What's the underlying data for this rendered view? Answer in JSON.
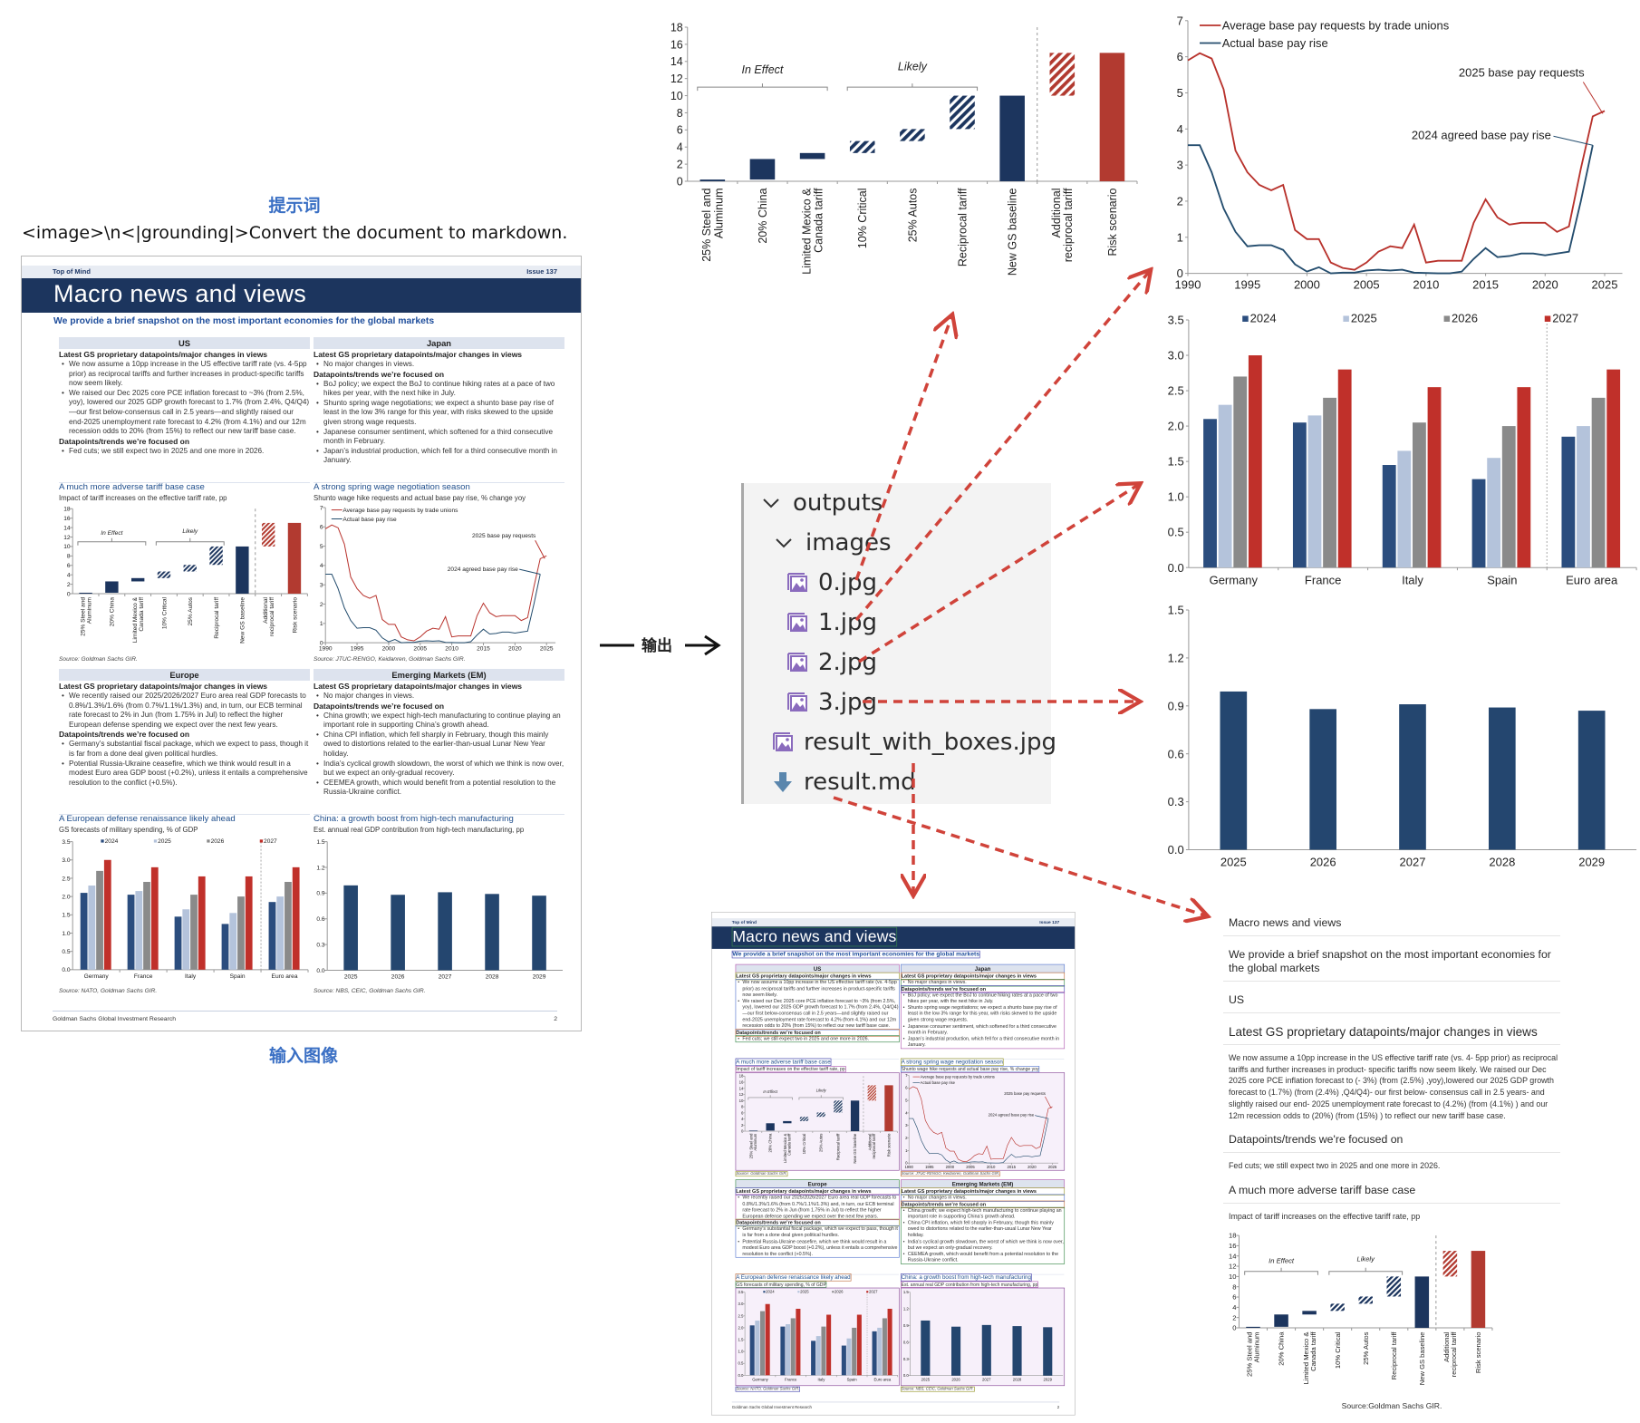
{
  "prompt": {
    "label": "提示词",
    "text": "<image>\\n<|grounding|>Convert the document to markdown."
  },
  "input_label": "输入图像",
  "output_label": "输出",
  "doc": {
    "top_left": "Top of Mind",
    "top_right": "Issue 137",
    "title": "Macro news and views",
    "subtitle": "We provide a brief snapshot on the most important economies for the global markets",
    "sections": [
      {
        "header": "US",
        "chart": 0,
        "blocks": [
          {
            "heading": "Latest GS proprietary datapoints/major changes in views",
            "bullets": [
              "We now assume a 10pp increase in the US effective tariff rate (vs. 4-5pp prior) as reciprocal tariffs and further increases in product-specific tariffs now seem likely.",
              "We raised our Dec 2025 core PCE inflation forecast to ~3% (from 2.5%, yoy), lowered our 2025 GDP growth forecast to 1.7% (from 2.4%, Q4/Q4)—our first below-consensus call in 2.5 years—and slightly raised our end-2025 unemployment rate forecast to 4.2% (from 4.1%) and our 12m recession odds to 20% (from 15%) to reflect our new tariff base case."
            ]
          },
          {
            "heading": "Datapoints/trends we’re focused on",
            "bullets": [
              "Fed cuts; we still expect two in 2025 and one more in 2026."
            ]
          }
        ],
        "chart_title": "A much more adverse tariff base case",
        "chart_subtitle": "Impact of tariff increases on the effective tariff rate, pp",
        "source": "Source: Goldman Sachs GIR."
      },
      {
        "header": "Japan",
        "chart": 1,
        "blocks": [
          {
            "heading": "Latest GS proprietary datapoints/major changes in views",
            "bullets": [
              "No major changes in views."
            ]
          },
          {
            "heading": "Datapoints/trends we’re focused on",
            "bullets": [
              "BoJ policy; we expect the BoJ to continue hiking rates at a pace of two hikes per year, with the next hike in July.",
              "Shunto spring wage negotiations; we expect a shunto base pay rise of least in the low 3% range for this year, with risks skewed to the upside given strong wage requests.",
              "Japanese consumer sentiment, which softened for a third consecutive month in February.",
              "Japan’s industrial production, which fell for a third consecutive month in January."
            ]
          }
        ],
        "chart_title": "A strong spring wage negotiation season",
        "chart_subtitle": "Shunto wage hike requests and actual base pay rise, % change yoy",
        "source": "Source: JTUC-RENGO, Keidanren, Goldman Sachs GIR."
      },
      {
        "header": "Europe",
        "chart": 2,
        "blocks": [
          {
            "heading": "Latest GS proprietary datapoints/major changes in views",
            "bullets": [
              "We recently raised our 2025/2026/2027 Euro area real GDP forecasts to 0.8%/1.3%/1.6% (from 0.7%/1.1%/1.3%) and, in turn, our ECB terminal rate forecast to 2% in Jun (from 1.75% in Jul) to reflect the higher European defense spending we expect over the next few years."
            ]
          },
          {
            "heading": "Datapoints/trends we’re focused on",
            "bullets": [
              "Germany’s substantial fiscal package, which we expect to pass, though it is far from a done deal given political hurdles.",
              "Potential Russia-Ukraine ceasefire, which we think would result in a modest Euro area GDP boost (+0.2%), unless it entails a comprehensive resolution to the conflict (+0.5%)."
            ]
          }
        ],
        "chart_title": "A European defense renaissance likely ahead",
        "chart_subtitle": "GS forecasts of military spending, % of GDP",
        "source": "Source: NATO, Goldman Sachs GIR."
      },
      {
        "header": "Emerging Markets (EM)",
        "chart": 3,
        "blocks": [
          {
            "heading": "Latest GS proprietary datapoints/major changes in views",
            "bullets": [
              "No major changes in views."
            ]
          },
          {
            "heading": "Datapoints/trends we’re focused on",
            "bullets": [
              "China growth; we expect high-tech manufacturing to continue playing an important role in supporting China’s growth ahead.",
              "China CPI inflation, which fell sharply in February, though this mainly owed to distortions related to the earlier-than-usual Lunar New Year holiday.",
              "India’s cyclical growth slowdown, the worst of which we think is now over, but we expect an only-gradual recovery.",
              "CEEMEA growth, which would benefit from a potential resolution to the Russia-Ukraine conflict."
            ]
          }
        ],
        "chart_title": "China: a growth boost from high-tech manufacturing",
        "chart_subtitle": "Est. annual real GDP contribution from high-tech manufacturing, pp",
        "source": "Source: NBS, CEIC, Goldman Sachs GIR."
      }
    ],
    "footer_left": "Goldman Sachs Global Investment Research",
    "footer_right": "2"
  },
  "file_tree": {
    "items": [
      {
        "label": "outputs",
        "type": "folder",
        "icon": "chevron-down-icon",
        "expanded": true
      },
      {
        "label": "images",
        "type": "folder",
        "icon": "chevron-down-icon",
        "expanded": true
      },
      {
        "label": "0.jpg",
        "type": "image",
        "icon": "image-file-icon"
      },
      {
        "label": "1.jpg",
        "type": "image",
        "icon": "image-file-icon"
      },
      {
        "label": "2.jpg",
        "type": "image",
        "icon": "image-file-icon"
      },
      {
        "label": "3.jpg",
        "type": "image",
        "icon": "image-file-icon"
      },
      {
        "label": "result_with_boxes.jpg",
        "type": "image",
        "icon": "image-file-icon"
      },
      {
        "label": "result.md",
        "type": "markdown",
        "icon": "download-arrow-icon"
      }
    ]
  },
  "markdown": {
    "h1": "Macro news and views",
    "h2": "We provide a brief snapshot on the most important economies for the global markets",
    "h3": "US",
    "h4": "Latest GS proprietary datapoints/major changes in views",
    "p1": "We now assume a 10pp increase in the US effective tariff rate (vs. 4- 5pp prior) as reciprocal tariffs and further increases in product- specific tariffs now seem likely. We raised our Dec 2025 core PCE inflation forecast to (- 3%) (from (2.5%) ,yoy),lowered our 2025 GDP growth forecast to (1.7%) (from (2.4%) ,Q4/Q4)- our first below- consensus call in 2.5 years- and slightly raised our end- 2025 unemployment rate forecast to (4.2%) (from (4.1%) ) and our 12m recession odds to (20%) (from (15%) ) to reflect our new tariff base case.",
    "h5": "Datapoints/trends we're focused on",
    "p2": "Fed cuts; we still expect two in 2025 and one more in 2026.",
    "h6": "A much more adverse tariff base case",
    "p3": "Impact of tariff increases on the effective tariff rate, pp",
    "source": "Source:Goldman Sachs GIR."
  },
  "colors": {
    "navy": "#1c355e",
    "red": "#b23a30",
    "accent_blue": "#3a6fc4",
    "arrow_red": "#d0433a",
    "title_band": "#1c355e",
    "icon_purple": "#8a6bbd",
    "icon_download": "#5a86ad"
  },
  "chart_data": [
    {
      "type": "bar",
      "subtype": "waterfall",
      "categories": [
        [
          "25% Steel and",
          "Aluminum"
        ],
        [
          "20% China"
        ],
        [
          "Limited Mexico &",
          "Canada tariff"
        ],
        [
          "10% Critical"
        ],
        [
          "25% Autos"
        ],
        [
          "Reciprocal tariff"
        ],
        [
          "New GS baseline"
        ],
        [
          "Additional",
          "reciprocal tariff"
        ],
        [
          "Risk scenario"
        ]
      ],
      "ranges": [
        [
          0,
          0.2
        ],
        [
          0.2,
          2.6
        ],
        [
          2.6,
          3.3
        ],
        [
          3.3,
          4.7
        ],
        [
          4.7,
          6.1
        ],
        [
          6.1,
          10
        ],
        [
          0,
          10
        ],
        [
          10,
          15
        ],
        [
          0,
          15
        ]
      ],
      "styles": [
        "solid",
        "solid",
        "solid",
        "hatched",
        "hatched",
        "hatched",
        "solid",
        "hatched",
        "solid"
      ],
      "colors": [
        "navy",
        "navy",
        "navy",
        "navy",
        "navy",
        "navy",
        "navy",
        "red",
        "red"
      ],
      "groups": [
        {
          "label": "In Effect",
          "from": 0,
          "to": 2
        },
        {
          "label": "Likely",
          "from": 3,
          "to": 5
        }
      ],
      "ylim": [
        0,
        18
      ],
      "yticks": [
        0,
        2,
        4,
        6,
        8,
        10,
        12,
        14,
        16,
        18
      ],
      "divider_after": 6
    },
    {
      "type": "line",
      "x": [
        1990,
        1991,
        1992,
        1993,
        1994,
        1995,
        1996,
        1997,
        1998,
        1999,
        2000,
        2001,
        2002,
        2003,
        2004,
        2005,
        2006,
        2007,
        2008,
        2009,
        2010,
        2011,
        2012,
        2013,
        2014,
        2015,
        2016,
        2017,
        2018,
        2019,
        2020,
        2021,
        2022,
        2023,
        2024,
        2025
      ],
      "series": [
        {
          "name": "Average base pay requests by trade unions",
          "color": "#b8322c",
          "values": [
            5.9,
            6.1,
            5.95,
            5.1,
            3.4,
            2.8,
            2.45,
            2.3,
            2.45,
            1.2,
            0.95,
            0.95,
            0.3,
            0.15,
            0.1,
            0.3,
            0.6,
            0.75,
            0.7,
            1.35,
            0.3,
            0.35,
            0.35,
            0.35,
            1.4,
            2.05,
            1.55,
            1.35,
            1.4,
            1.4,
            1.4,
            1.15,
            1.3,
            2.9,
            4.35,
            4.5
          ]
        },
        {
          "name": "Actual base pay rise",
          "color": "#244d6e",
          "values": [
            3.55,
            3.55,
            2.8,
            1.8,
            1.15,
            0.75,
            0.78,
            0.78,
            0.65,
            0.25,
            0.05,
            0.17,
            0,
            0.02,
            0.02,
            0.08,
            0.1,
            0.08,
            0.1,
            0.02,
            0.01,
            0,
            0,
            0.05,
            0.4,
            0.7,
            0.45,
            0.48,
            0.55,
            0.55,
            0.5,
            0.55,
            0.6,
            2.0,
            3.55,
            null
          ]
        }
      ],
      "annotations": [
        {
          "text": "2025 base pay requests",
          "x": 2025,
          "y": 4.5
        },
        {
          "text": "2024 agreed base pay rise",
          "x": 2024,
          "y": 3.55
        }
      ],
      "xticks": [
        1990,
        1995,
        2000,
        2005,
        2010,
        2015,
        2020,
        2025
      ],
      "ylim": [
        0,
        7
      ],
      "yticks": [
        0,
        1,
        2,
        3,
        4,
        5,
        6,
        7
      ],
      "legend": "top-left"
    },
    {
      "type": "bar",
      "categories": [
        "Germany",
        "France",
        "Italy",
        "Spain",
        "Euro area"
      ],
      "series": [
        {
          "name": "2024",
          "color": "#2b4d7e",
          "values": [
            2.1,
            2.05,
            1.45,
            1.25,
            1.85
          ]
        },
        {
          "name": "2025",
          "color": "#b4c3db",
          "values": [
            2.3,
            2.15,
            1.65,
            1.55,
            2.0
          ]
        },
        {
          "name": "2026",
          "color": "#8a8a8a",
          "values": [
            2.7,
            2.4,
            2.05,
            2.0,
            2.4
          ]
        },
        {
          "name": "2027",
          "color": "#c0302a",
          "values": [
            3.0,
            2.8,
            2.55,
            2.55,
            2.8
          ]
        }
      ],
      "ylim": [
        0,
        3.5
      ],
      "yticks": [
        0,
        0.5,
        1,
        1.5,
        2,
        2.5,
        3,
        3.5
      ],
      "legend": "top",
      "divider_after": 3
    },
    {
      "type": "bar",
      "categories": [
        "2025",
        "2026",
        "2027",
        "2028",
        "2029"
      ],
      "values": [
        0.99,
        0.88,
        0.91,
        0.89,
        0.87
      ],
      "color": "#24466f",
      "ylim": [
        0,
        1.5
      ],
      "yticks": [
        0,
        0.3,
        0.6,
        0.9,
        1.2,
        1.5
      ]
    }
  ]
}
